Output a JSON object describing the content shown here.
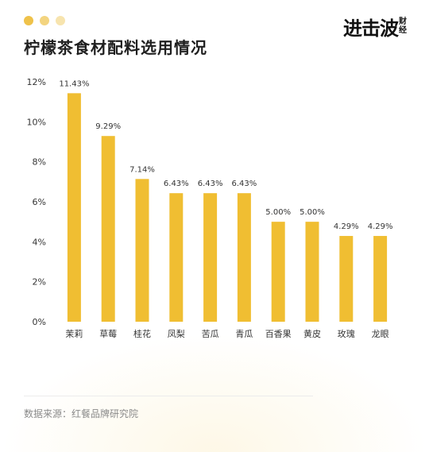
{
  "header": {
    "title": "柠檬茶食材配料选用情况",
    "logo_main": "进击波",
    "logo_sub_1": "财",
    "logo_sub_2": "经"
  },
  "colors": {
    "bar": "#F0BE32",
    "dots": [
      "#EFC24A",
      "#F3D47F",
      "#F7E4AE"
    ],
    "axis_text": "#333333",
    "label_text": "#333333"
  },
  "source": "数据来源：红餐品牌研究院",
  "chart_data": {
    "type": "bar",
    "categories": [
      "茉莉",
      "草莓",
      "桂花",
      "凤梨",
      "苦瓜",
      "青瓜",
      "百香果",
      "黄皮",
      "玫瑰",
      "龙眼"
    ],
    "values": [
      11.43,
      9.29,
      7.14,
      6.43,
      6.43,
      6.43,
      5.0,
      5.0,
      4.29,
      4.29
    ],
    "value_labels": [
      "11.43%",
      "9.29%",
      "7.14%",
      "6.43%",
      "6.43%",
      "6.43%",
      "5.00%",
      "5.00%",
      "4.29%",
      "4.29%"
    ],
    "yticks": [
      "0%",
      "2%",
      "4%",
      "6%",
      "8%",
      "10%",
      "12%"
    ],
    "ylim": [
      0,
      12
    ],
    "grid": false
  }
}
